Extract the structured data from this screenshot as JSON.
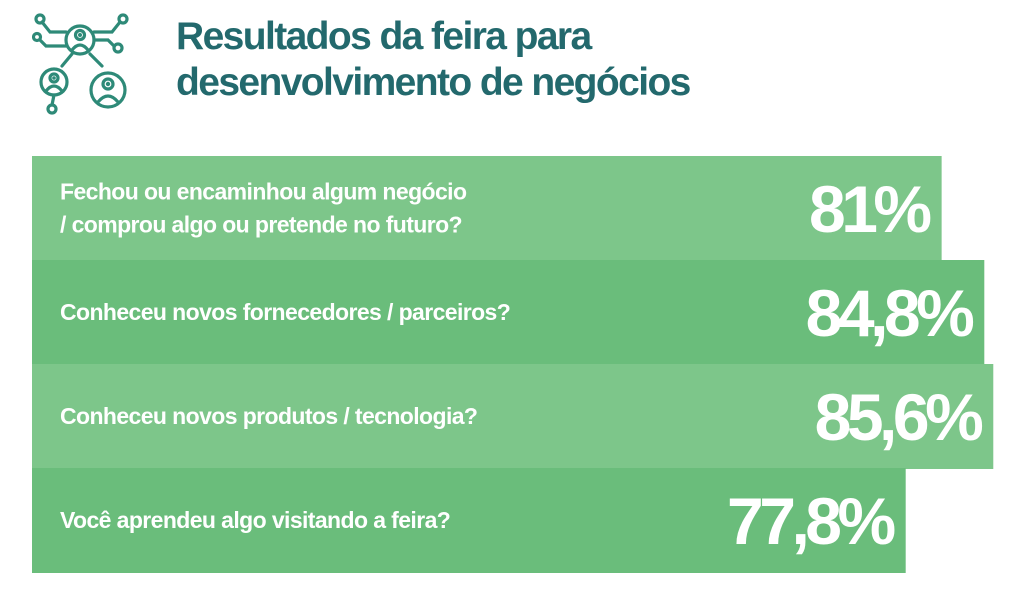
{
  "header": {
    "title": "Resultados da feira para\ndesenvolvimento de negócios",
    "logo_icon": "business-network-icon"
  },
  "colors": {
    "title": "#23696d",
    "bar_light": "#7dc68a",
    "bar_dark": "#6abd7b",
    "text_on_bar": "#ffffff",
    "logo": "#2e8a78"
  },
  "chart_data": {
    "type": "bar",
    "orientation": "horizontal",
    "categories": [
      "Fechou ou encaminhou algum negócio\n/ comprou algo ou pretende no futuro?",
      "Conheceu novos fornecedores / parceiros?",
      "Conheceu novos produtos / tecnologia?",
      "Você aprendeu algo visitando a feira?"
    ],
    "values": [
      81,
      84.8,
      85.6,
      77.8
    ],
    "value_labels": [
      "81%",
      "84,8%",
      "85,6%",
      "77,8%"
    ],
    "title": "Resultados da feira para desenvolvimento de negócios",
    "xlim": [
      0,
      100
    ],
    "grid": false,
    "legend": "none"
  }
}
